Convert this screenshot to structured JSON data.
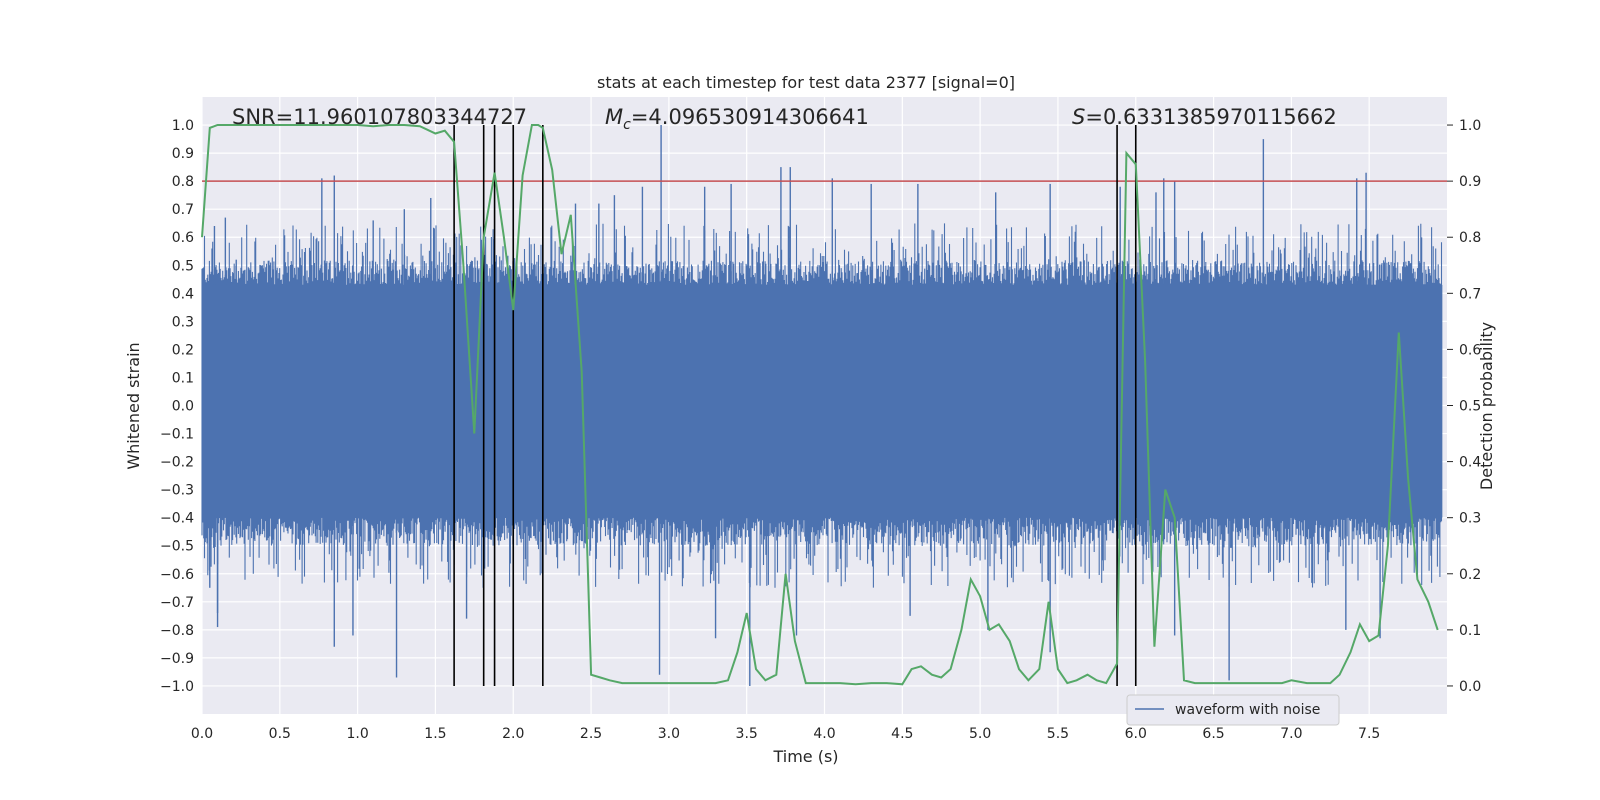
{
  "chart_data": {
    "type": "line",
    "title": "stats at each timestep for test data 2377 [signal=0]",
    "xlabel": "Time (s)",
    "ylabel_left": "Whitened strain",
    "ylabel_right": "Detection probability",
    "xlim": [
      0.0,
      8.0
    ],
    "ylim_left": [
      -1.1,
      1.1
    ],
    "ylim_right": [
      -0.05,
      1.05
    ],
    "x_ticks": [
      "0.0",
      "0.5",
      "1.0",
      "1.5",
      "2.0",
      "2.5",
      "3.0",
      "3.5",
      "4.0",
      "4.5",
      "5.0",
      "5.5",
      "6.0",
      "6.5",
      "7.0",
      "7.5"
    ],
    "y_ticks_left": [
      "1.0",
      "0.9",
      "0.8",
      "0.7",
      "0.6",
      "0.5",
      "0.4",
      "0.3",
      "0.2",
      "0.1",
      "0.0",
      "-0.1",
      "-0.2",
      "-0.3",
      "-0.4",
      "-0.5",
      "-0.6",
      "-0.7",
      "-0.8",
      "-0.9",
      "-1.0"
    ],
    "y_ticks_right": [
      "1.0",
      "0.9",
      "0.8",
      "0.7",
      "0.6",
      "0.5",
      "0.4",
      "0.3",
      "0.2",
      "0.1",
      "0.0"
    ],
    "annotations": {
      "snr": "SNR=11.960107803344727",
      "mc_symbol": "M",
      "mc_subscript": "c",
      "mc_value": "=4.096530914306641",
      "s_symbol": "S",
      "s_value": "=0.6331385970115662"
    },
    "legend": {
      "label": "waveform with noise",
      "placement": "lower-right"
    },
    "threshold": {
      "value": 0.9,
      "axis": "right",
      "color": "#c44e52"
    },
    "vertical_markers": [
      1.62,
      1.81,
      1.88,
      2.0,
      2.19,
      5.88,
      6.0
    ],
    "strain_series": {
      "name": "waveform with noise",
      "color": "#4c72b0",
      "envelope_pos": 0.43,
      "envelope_neg": -0.4,
      "spikes": [
        {
          "x": 0.08,
          "v": 0.64
        },
        {
          "x": 0.15,
          "v": 0.67
        },
        {
          "x": 0.22,
          "v": 0.52
        },
        {
          "x": 0.77,
          "v": 0.81
        },
        {
          "x": 0.85,
          "v": 0.82
        },
        {
          "x": 1.1,
          "v": 0.66
        },
        {
          "x": 1.3,
          "v": 0.7
        },
        {
          "x": 1.47,
          "v": 0.74
        },
        {
          "x": 2.4,
          "v": 0.72
        },
        {
          "x": 2.55,
          "v": 0.72
        },
        {
          "x": 2.65,
          "v": 0.75
        },
        {
          "x": 2.83,
          "v": 0.78
        },
        {
          "x": 2.95,
          "v": 1.0
        },
        {
          "x": 3.23,
          "v": 0.78
        },
        {
          "x": 3.4,
          "v": 0.79
        },
        {
          "x": 3.72,
          "v": 0.85
        },
        {
          "x": 3.78,
          "v": 0.85
        },
        {
          "x": 4.05,
          "v": 0.81
        },
        {
          "x": 4.3,
          "v": 0.79
        },
        {
          "x": 4.6,
          "v": 0.79
        },
        {
          "x": 5.1,
          "v": 0.76
        },
        {
          "x": 5.45,
          "v": 0.79
        },
        {
          "x": 5.9,
          "v": 0.78
        },
        {
          "x": 6.13,
          "v": 0.76
        },
        {
          "x": 6.18,
          "v": 0.81
        },
        {
          "x": 6.25,
          "v": 0.8
        },
        {
          "x": 6.82,
          "v": 0.95
        },
        {
          "x": 7.42,
          "v": 0.81
        },
        {
          "x": 7.48,
          "v": 0.83
        },
        {
          "x": 0.05,
          "v": -0.65
        },
        {
          "x": 0.1,
          "v": -0.74
        },
        {
          "x": 0.1,
          "v": -0.79
        },
        {
          "x": 0.85,
          "v": -0.86
        },
        {
          "x": 0.97,
          "v": -0.82
        },
        {
          "x": 1.25,
          "v": -0.97
        },
        {
          "x": 1.7,
          "v": -0.76
        },
        {
          "x": 2.0,
          "v": -0.78
        },
        {
          "x": 2.94,
          "v": -0.96
        },
        {
          "x": 3.3,
          "v": -0.83
        },
        {
          "x": 3.52,
          "v": -1.0
        },
        {
          "x": 3.82,
          "v": -0.82
        },
        {
          "x": 4.55,
          "v": -0.75
        },
        {
          "x": 5.05,
          "v": -0.8
        },
        {
          "x": 5.45,
          "v": -0.88
        },
        {
          "x": 6.25,
          "v": -0.82
        },
        {
          "x": 6.6,
          "v": -0.98
        },
        {
          "x": 7.35,
          "v": -0.8
        },
        {
          "x": 7.57,
          "v": -0.83
        }
      ]
    },
    "probability_series": {
      "name": "detection probability",
      "color": "#55a868",
      "x": [
        0.0,
        0.05,
        0.1,
        0.2,
        0.3,
        0.5,
        0.7,
        0.9,
        1.0,
        1.1,
        1.2,
        1.3,
        1.4,
        1.5,
        1.56,
        1.62,
        1.68,
        1.75,
        1.81,
        1.88,
        1.94,
        2.0,
        2.06,
        2.12,
        2.16,
        2.19,
        2.25,
        2.31,
        2.37,
        2.44,
        2.5,
        2.56,
        2.62,
        2.7,
        2.8,
        2.9,
        3.0,
        3.1,
        3.2,
        3.3,
        3.38,
        3.44,
        3.5,
        3.56,
        3.62,
        3.69,
        3.75,
        3.81,
        3.88,
        3.94,
        4.0,
        4.1,
        4.2,
        4.3,
        4.4,
        4.5,
        4.56,
        4.62,
        4.69,
        4.75,
        4.81,
        4.88,
        4.94,
        5.0,
        5.06,
        5.12,
        5.19,
        5.25,
        5.31,
        5.38,
        5.44,
        5.5,
        5.56,
        5.62,
        5.69,
        5.75,
        5.81,
        5.88,
        5.94,
        6.0,
        6.06,
        6.12,
        6.19,
        6.25,
        6.31,
        6.38,
        6.5,
        6.62,
        6.75,
        6.88,
        6.94,
        7.0,
        7.1,
        7.2,
        7.25,
        7.31,
        7.38,
        7.44,
        7.5,
        7.56,
        7.62,
        7.69,
        7.75,
        7.81,
        7.88,
        7.94
      ],
      "y": [
        0.8,
        0.995,
        1.0,
        1.0,
        1.0,
        1.0,
        1.0,
        1.0,
        1.0,
        0.998,
        1.0,
        1.0,
        0.998,
        0.985,
        0.99,
        0.97,
        0.75,
        0.45,
        0.8,
        0.915,
        0.8,
        0.67,
        0.91,
        1.0,
        1.0,
        0.995,
        0.92,
        0.77,
        0.84,
        0.56,
        0.02,
        0.015,
        0.01,
        0.005,
        0.005,
        0.005,
        0.005,
        0.005,
        0.005,
        0.005,
        0.01,
        0.06,
        0.13,
        0.03,
        0.01,
        0.02,
        0.2,
        0.08,
        0.005,
        0.005,
        0.005,
        0.005,
        0.003,
        0.005,
        0.005,
        0.003,
        0.03,
        0.035,
        0.02,
        0.015,
        0.03,
        0.1,
        0.19,
        0.16,
        0.1,
        0.11,
        0.08,
        0.03,
        0.01,
        0.03,
        0.15,
        0.03,
        0.005,
        0.01,
        0.02,
        0.01,
        0.005,
        0.04,
        0.95,
        0.93,
        0.58,
        0.07,
        0.35,
        0.3,
        0.01,
        0.005,
        0.005,
        0.005,
        0.005,
        0.005,
        0.005,
        0.01,
        0.005,
        0.005,
        0.005,
        0.02,
        0.06,
        0.11,
        0.08,
        0.09,
        0.25,
        0.63,
        0.37,
        0.19,
        0.15,
        0.1
      ]
    }
  }
}
